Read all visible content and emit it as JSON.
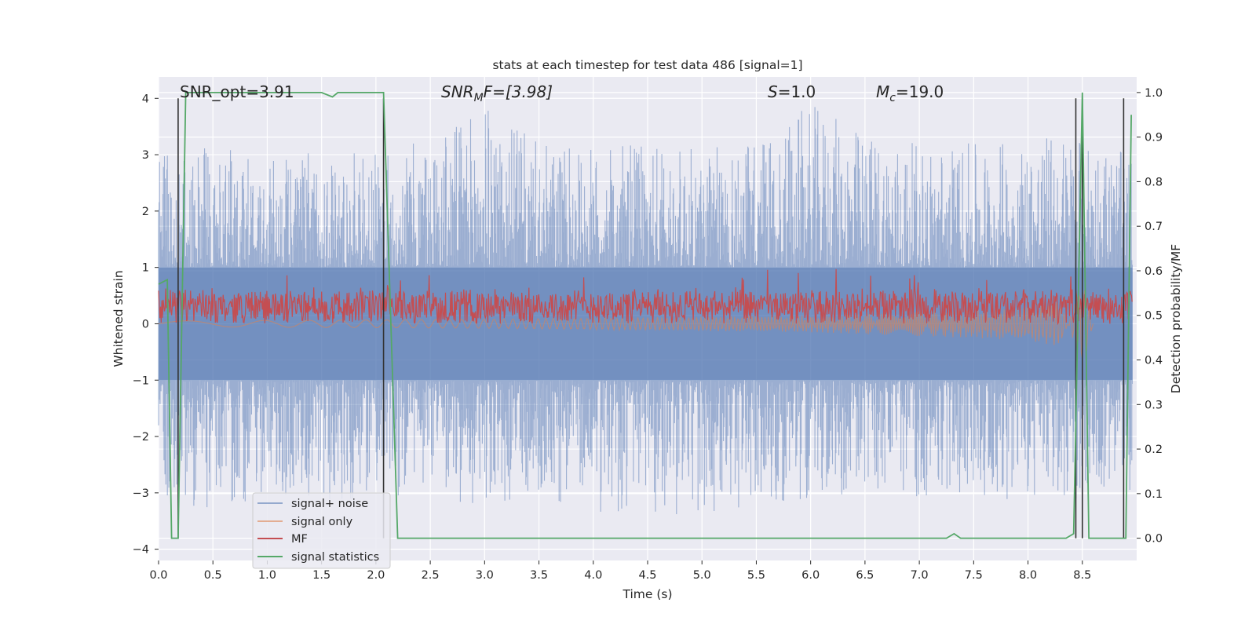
{
  "chart_data": {
    "type": "line",
    "title": "stats at each timestep for test data 486 [signal=1]",
    "xlabel": "Time (s)",
    "ylabel_left": "Whitened strain",
    "ylabel_right": "Detection probability/MF",
    "xlim": [
      0.0,
      9.0
    ],
    "ylim_left": [
      -4.2,
      4.38
    ],
    "ylim_right": [
      -0.05,
      1.035
    ],
    "xticks": [
      0.0,
      0.5,
      1.0,
      1.5,
      2.0,
      2.5,
      3.0,
      3.5,
      4.0,
      4.5,
      5.0,
      5.5,
      6.0,
      6.5,
      7.0,
      7.5,
      8.0,
      8.5
    ],
    "xtick_labels": [
      "0.0",
      "0.5",
      "1.0",
      "1.5",
      "2.0",
      "2.5",
      "3.0",
      "3.5",
      "4.0",
      "4.5",
      "5.0",
      "5.5",
      "6.0",
      "6.5",
      "7.0",
      "7.5",
      "8.0",
      "8.5"
    ],
    "yticks_left": [
      -4,
      -3,
      -2,
      -1,
      0,
      1,
      2,
      3,
      4
    ],
    "ytick_labels_left": [
      "−4",
      "−3",
      "−2",
      "−1",
      "0",
      "1",
      "2",
      "3",
      "4"
    ],
    "yticks_right": [
      0.0,
      0.1,
      0.2,
      0.3,
      0.4,
      0.5,
      0.6,
      0.7,
      0.8,
      0.9,
      1.0
    ],
    "ytick_labels_right": [
      "0.0",
      "0.1",
      "0.2",
      "0.3",
      "0.4",
      "0.5",
      "0.6",
      "0.7",
      "0.8",
      "0.9",
      "1.0"
    ],
    "grid": true,
    "legend_placement": "lower-left",
    "annotations": {
      "snr_opt": "SNR_opt=3.91",
      "snr_mf_sym": "SNR",
      "snr_mf_sub": "M",
      "snr_mf_rest": "F=[3.98]",
      "s_sym": "S",
      "s_rest": "=1.0",
      "mc_sym": "M",
      "mc_sub": "c",
      "mc_rest": "=19.0"
    },
    "series": [
      {
        "name": "signal+ noise",
        "axis": "left",
        "color": "#4c72b0",
        "description_level": "noise band",
        "envelope_upper": [
          [
            0.0,
            3.0
          ],
          [
            0.5,
            3.2
          ],
          [
            1.0,
            2.9
          ],
          [
            1.5,
            3.1
          ],
          [
            2.0,
            3.0
          ],
          [
            2.5,
            3.3
          ],
          [
            3.0,
            3.9
          ],
          [
            3.5,
            3.2
          ],
          [
            4.0,
            3.1
          ],
          [
            4.5,
            3.2
          ],
          [
            5.0,
            3.1
          ],
          [
            5.5,
            3.3
          ],
          [
            6.0,
            3.9
          ],
          [
            6.5,
            3.4
          ],
          [
            7.0,
            3.2
          ],
          [
            7.5,
            3.2
          ],
          [
            8.0,
            3.3
          ],
          [
            8.5,
            3.5
          ],
          [
            8.9,
            3.0
          ]
        ],
        "envelope_lower": [
          [
            0.0,
            -3.0
          ],
          [
            0.5,
            -3.4
          ],
          [
            1.0,
            -3.0
          ],
          [
            1.5,
            -3.2
          ],
          [
            2.0,
            -3.1
          ],
          [
            2.5,
            -3.0
          ],
          [
            3.0,
            -3.3
          ],
          [
            3.5,
            -3.0
          ],
          [
            4.0,
            -3.4
          ],
          [
            4.5,
            -3.3
          ],
          [
            5.0,
            -3.6
          ],
          [
            5.5,
            -3.2
          ],
          [
            6.0,
            -3.1
          ],
          [
            6.5,
            -3.0
          ],
          [
            7.0,
            -3.1
          ],
          [
            7.5,
            -3.0
          ],
          [
            8.0,
            -3.2
          ],
          [
            8.5,
            -3.1
          ],
          [
            8.9,
            -3.0
          ]
        ]
      },
      {
        "name": "signal only",
        "axis": "left",
        "color": "#dd8452",
        "points": [
          [
            0.0,
            0.05
          ],
          [
            3.0,
            0.08
          ],
          [
            6.0,
            0.15
          ],
          [
            7.0,
            0.22
          ],
          [
            7.5,
            0.25
          ],
          [
            8.0,
            0.3
          ],
          [
            8.3,
            0.4
          ],
          [
            8.5,
            -0.8
          ],
          [
            8.6,
            0.0
          ]
        ]
      },
      {
        "name": "MF",
        "axis": "left",
        "color": "#c44e52",
        "mean": 0.3,
        "amplitude": 0.35
      },
      {
        "name": "signal statistics",
        "axis": "right",
        "color": "#55a868",
        "points": [
          [
            0.0,
            0.57
          ],
          [
            0.08,
            0.58
          ],
          [
            0.12,
            0.0
          ],
          [
            0.18,
            0.0
          ],
          [
            0.25,
            1.0
          ],
          [
            1.5,
            1.0
          ],
          [
            1.6,
            0.99
          ],
          [
            1.65,
            1.0
          ],
          [
            2.07,
            1.0
          ],
          [
            2.2,
            0.0
          ],
          [
            7.25,
            0.0
          ],
          [
            7.32,
            0.01
          ],
          [
            7.38,
            0.0
          ],
          [
            8.35,
            0.0
          ],
          [
            8.42,
            0.01
          ],
          [
            8.5,
            1.0
          ],
          [
            8.56,
            0.0
          ],
          [
            8.9,
            0.0
          ],
          [
            8.95,
            0.95
          ]
        ]
      }
    ],
    "vertical_markers_x": [
      0.18,
      2.07,
      8.44,
      8.5,
      8.88
    ]
  }
}
